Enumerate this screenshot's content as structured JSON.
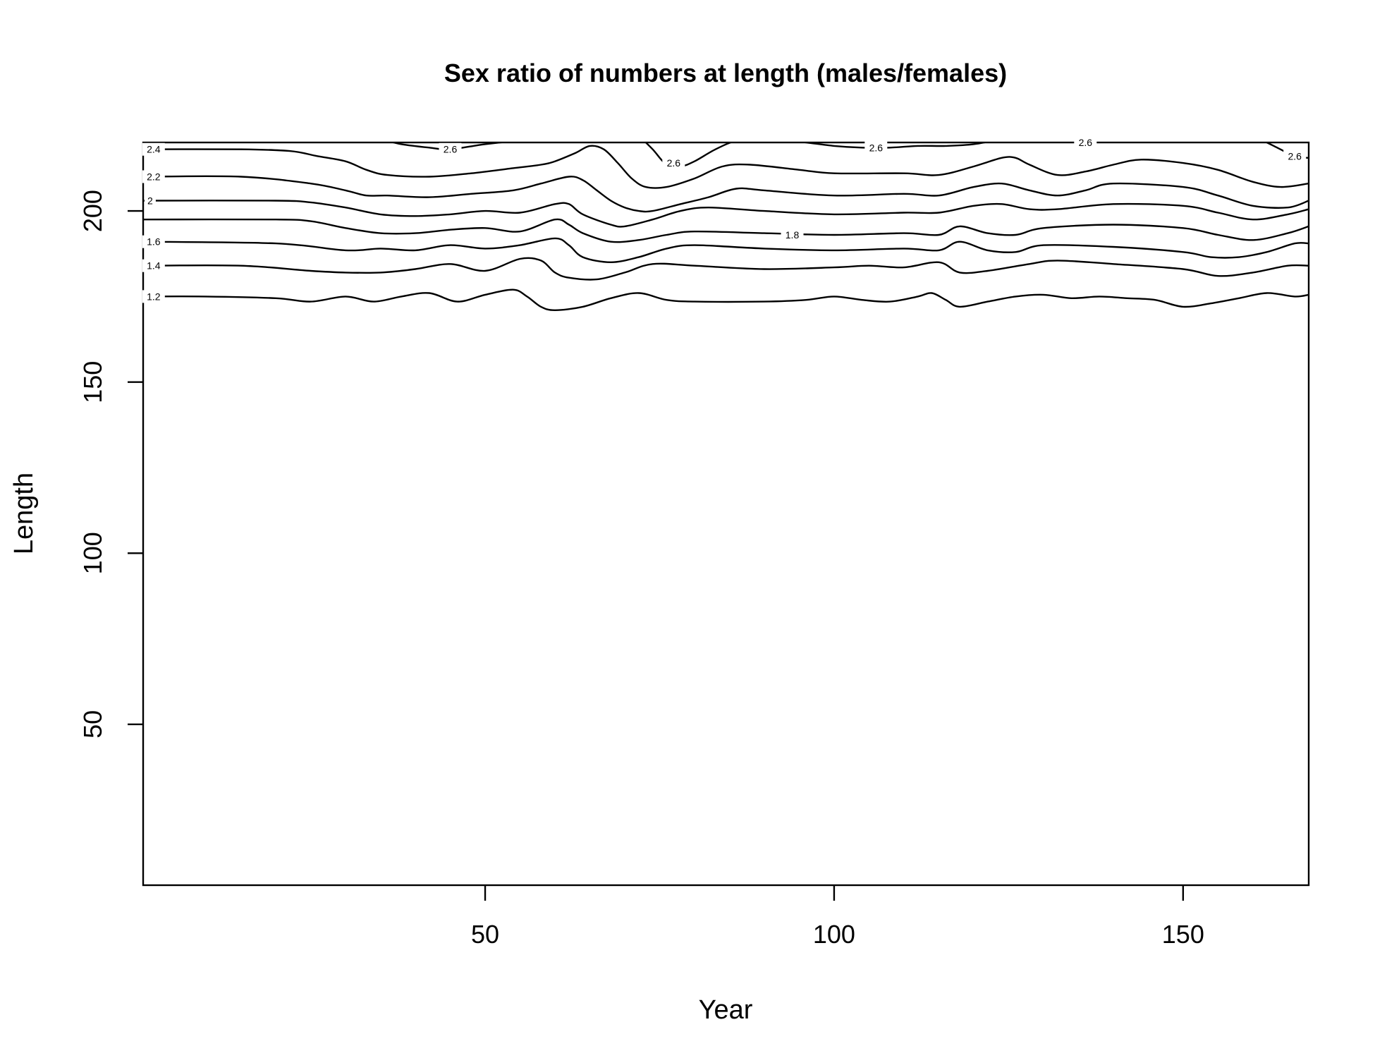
{
  "chart_data": {
    "type": "contour",
    "title": "Sex ratio of numbers at length (males/females)",
    "xlabel": "Year",
    "ylabel": "Length",
    "xlim": [
      1,
      168
    ],
    "ylim": [
      3,
      220
    ],
    "xticks": [
      50,
      100,
      150
    ],
    "yticks": [
      50,
      100,
      150,
      200
    ],
    "grid": false,
    "levels": [
      {
        "level": "1.2",
        "label": "1.2",
        "x": [
          1,
          10,
          20,
          25,
          30,
          34,
          38,
          42,
          46,
          50,
          54,
          56,
          58,
          60,
          64,
          68,
          72,
          76,
          80,
          90,
          96,
          100,
          104,
          108,
          112,
          114,
          116,
          118,
          122,
          126,
          130,
          134,
          138,
          142,
          146,
          150,
          154,
          158,
          162,
          166,
          168
        ],
        "y": [
          175,
          175,
          174.5,
          173.5,
          175,
          173.5,
          175,
          176,
          173.5,
          175.5,
          177,
          175,
          172,
          171,
          172,
          174.5,
          176,
          174,
          173.5,
          173.5,
          174,
          175,
          174,
          173.5,
          175,
          176,
          174,
          172,
          173.5,
          175,
          175.5,
          174.5,
          175,
          174.5,
          174,
          172,
          173,
          174.5,
          176,
          175,
          175.5
        ]
      },
      {
        "level": "1.4",
        "label": "1.4",
        "x": [
          1,
          15,
          25,
          30,
          35,
          40,
          45,
          50,
          55,
          58,
          60,
          62,
          66,
          70,
          74,
          80,
          90,
          100,
          105,
          110,
          115,
          118,
          122,
          128,
          132,
          140,
          150,
          155,
          160,
          165,
          168
        ],
        "y": [
          184,
          184,
          182.5,
          182,
          182,
          183,
          184.5,
          182.5,
          186,
          185.5,
          182,
          180.5,
          180,
          182,
          184.5,
          184,
          183,
          183.5,
          184,
          183.5,
          185,
          182,
          182.5,
          184.5,
          185.5,
          184.5,
          183,
          181,
          182,
          184,
          184
        ]
      },
      {
        "level": "1.6",
        "label": "1.6",
        "x": [
          1,
          20,
          30,
          35,
          40,
          45,
          50,
          55,
          60,
          62,
          64,
          68,
          72,
          76,
          80,
          90,
          100,
          110,
          115,
          118,
          122,
          126,
          130,
          140,
          150,
          154,
          158,
          162,
          166,
          168
        ],
        "y": [
          191,
          190.5,
          188.5,
          189,
          188.5,
          190,
          189,
          190,
          192,
          190,
          186.5,
          185,
          186.5,
          189,
          190,
          189,
          188.5,
          189,
          188.5,
          191,
          188.5,
          188,
          190,
          189.5,
          188,
          186.5,
          186.5,
          188,
          190.5,
          190.5
        ]
      },
      {
        "level": "1.8",
        "label": "1.8",
        "x": [
          1,
          20,
          25,
          30,
          35,
          40,
          45,
          50,
          55,
          60,
          62,
          64,
          68,
          72,
          76,
          80,
          90,
          100,
          110,
          115,
          118,
          122,
          126,
          130,
          140,
          150,
          155,
          160,
          165,
          168
        ],
        "y": [
          197.5,
          197.5,
          197,
          195,
          193.5,
          193.5,
          194.5,
          195,
          194,
          197.5,
          196,
          193.5,
          191,
          191.5,
          193,
          194,
          193.5,
          193,
          193.5,
          193,
          195.5,
          193.5,
          193,
          195,
          196,
          195,
          193,
          191.5,
          193.5,
          195.5
        ]
      },
      {
        "level": "2",
        "label": "2",
        "x": [
          1,
          20,
          25,
          30,
          35,
          40,
          45,
          50,
          55,
          60,
          62,
          64,
          68,
          70,
          74,
          78,
          82,
          90,
          100,
          110,
          115,
          120,
          124,
          128,
          132,
          140,
          150,
          155,
          160,
          165,
          168
        ],
        "y": [
          203,
          203,
          202.5,
          201,
          199,
          198.5,
          199,
          200,
          199.5,
          202,
          202,
          199,
          196,
          195.5,
          197.5,
          200,
          201,
          200,
          199,
          199.5,
          199.5,
          201.5,
          202,
          200.5,
          200.5,
          202,
          201.5,
          199.5,
          197.5,
          199,
          200.5
        ]
      },
      {
        "level": "2.2",
        "label": "2.2",
        "x": [
          1,
          15,
          25,
          30,
          33,
          36,
          42,
          48,
          54,
          58,
          62,
          64,
          66,
          68,
          70,
          72,
          74,
          78,
          82,
          86,
          90,
          100,
          110,
          115,
          120,
          124,
          128,
          132,
          136,
          140,
          150,
          155,
          160,
          165,
          168
        ],
        "y": [
          210,
          210,
          208,
          206,
          204.5,
          204.5,
          204,
          205,
          206,
          208,
          210,
          209,
          206,
          203,
          201,
          200,
          200,
          202,
          204,
          206.5,
          206,
          204.5,
          205,
          204.5,
          207,
          208,
          206,
          204.5,
          206,
          208,
          207,
          204.5,
          201.5,
          201,
          203
        ]
      },
      {
        "level": "2.4",
        "label": "2.4",
        "x": [
          1,
          15,
          22,
          26,
          30,
          33,
          36,
          42,
          48,
          54,
          58,
          60,
          63,
          65,
          67,
          69,
          71,
          73,
          76,
          80,
          84,
          88,
          95,
          100,
          110,
          115,
          120,
          124,
          126,
          128,
          132,
          136,
          140,
          144,
          150,
          155,
          160,
          164,
          168
        ],
        "y": [
          218,
          218,
          217.5,
          216,
          214.5,
          212,
          210.5,
          210,
          211,
          212.5,
          213.5,
          214.5,
          217,
          219,
          218,
          214,
          209.5,
          207,
          207,
          209.5,
          213,
          213.5,
          212,
          211,
          211,
          210.5,
          213,
          215.5,
          215.5,
          213.5,
          210.5,
          211.5,
          213.5,
          215,
          214,
          212,
          208.5,
          207,
          208
        ]
      },
      {
        "level": "2.6",
        "label": "2.6",
        "x": [
          35,
          38,
          42,
          45,
          50,
          55,
          60,
          64
        ],
        "y": [
          221,
          219.5,
          218.5,
          218,
          219.5,
          220.5,
          221,
          222
        ]
      },
      {
        "level": "2.6",
        "label": "2.6",
        "x": [
          72,
          74,
          76,
          78,
          80,
          83,
          86,
          90
        ],
        "y": [
          222,
          218,
          213.5,
          213,
          214.5,
          218,
          220.5,
          221.5
        ]
      },
      {
        "level": "2.6",
        "label": "2.6",
        "x": [
          92,
          96,
          100,
          104,
          108,
          112,
          116,
          120,
          124
        ],
        "y": [
          221,
          220,
          219,
          218.5,
          218.5,
          219,
          219,
          219.5,
          221
        ]
      },
      {
        "level": "2.6",
        "label": "2.6",
        "x": [
          130,
          133,
          136,
          139,
          142
        ],
        "y": [
          222,
          220.5,
          220,
          220.5,
          222
        ]
      },
      {
        "level": "2.6",
        "label": "2.6",
        "x": [
          160,
          163,
          166,
          168
        ],
        "y": [
          222,
          219,
          216,
          215.5
        ]
      }
    ],
    "contour_labels": [
      {
        "text": "2.4",
        "x": 2.5,
        "y": 218
      },
      {
        "text": "2.2",
        "x": 2.5,
        "y": 210
      },
      {
        "text": "2",
        "x": 2,
        "y": 203
      },
      {
        "text": "1.6",
        "x": 2.5,
        "y": 191
      },
      {
        "text": "1.4",
        "x": 2.5,
        "y": 184
      },
      {
        "text": "1.2",
        "x": 2.5,
        "y": 175
      },
      {
        "text": "2.6",
        "x": 45,
        "y": 218
      },
      {
        "text": "2.6",
        "x": 77,
        "y": 214
      },
      {
        "text": "1.8",
        "x": 94,
        "y": 193
      },
      {
        "text": "2.6",
        "x": 106,
        "y": 218.5
      },
      {
        "text": "2.6",
        "x": 136,
        "y": 220
      },
      {
        "text": "2.6",
        "x": 166,
        "y": 216
      }
    ]
  }
}
